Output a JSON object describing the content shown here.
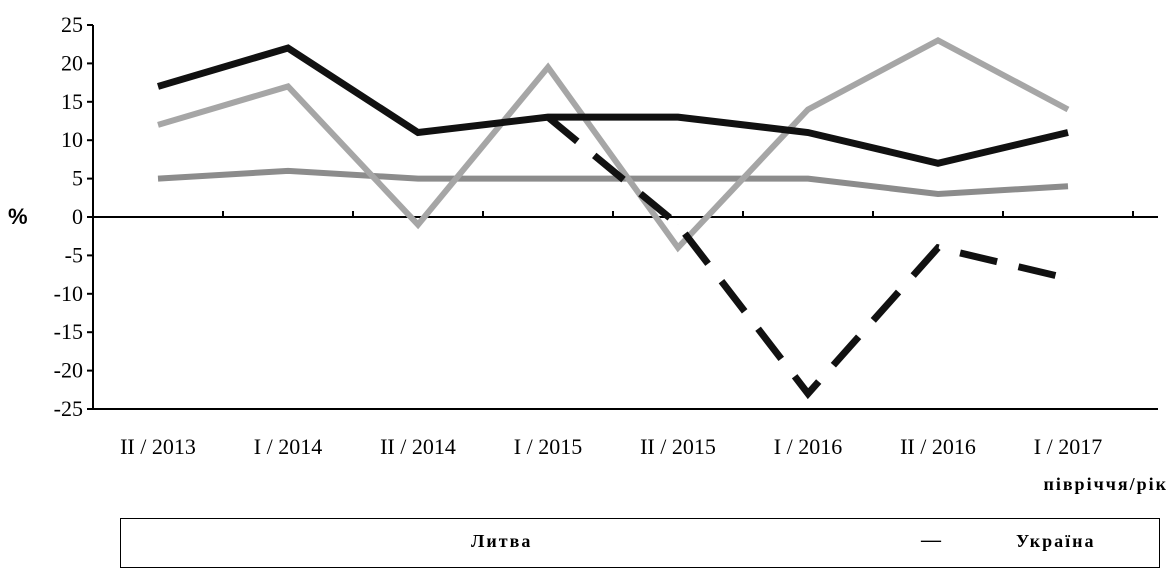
{
  "chart_data": {
    "type": "line",
    "title": "",
    "ylabel": "%",
    "xlabel": "півріччя/рік",
    "ylim": [
      -25,
      25
    ],
    "yticks": [
      25,
      20,
      15,
      10,
      5,
      0,
      -5,
      -10,
      -15,
      -20,
      -25
    ],
    "categories": [
      "II / 2013",
      "I / 2014",
      "II / 2014",
      "I / 2015",
      "II / 2015",
      "I / 2016",
      "II / 2016",
      "I / 2017"
    ],
    "series": [
      {
        "name": "Литва",
        "values": [
          17,
          22,
          11,
          13,
          13,
          11,
          7,
          11
        ],
        "color": "#111111",
        "style": "solid-thick"
      },
      {
        "name": "Україна",
        "values": [
          null,
          null,
          null,
          13,
          -1,
          -23,
          -4,
          -8
        ],
        "color": "#111111",
        "style": "dashed"
      },
      {
        "values": [
          12,
          17,
          -1,
          19.5,
          -4,
          14,
          23,
          14
        ],
        "color": "#a6a6a6",
        "style": "solid"
      },
      {
        "values": [
          5,
          6,
          5,
          5,
          5,
          5,
          3,
          4
        ],
        "color": "#8c8c8c",
        "style": "solid-textured"
      }
    ],
    "legend": {
      "position": "bottom",
      "items": [
        "Литва",
        "—",
        "Україна"
      ]
    },
    "grid": false
  }
}
